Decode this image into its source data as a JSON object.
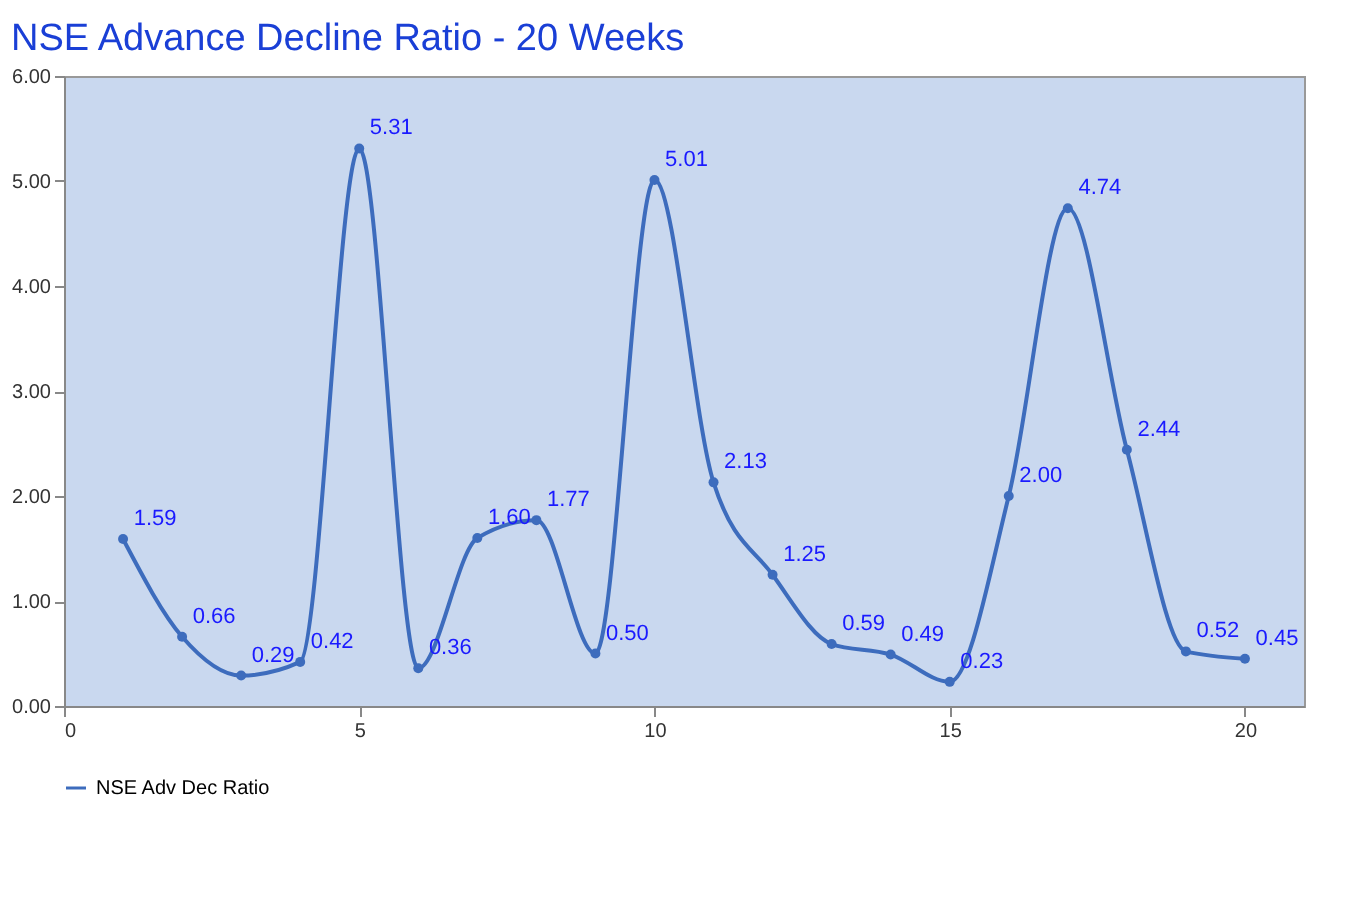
{
  "chart_data": {
    "type": "line",
    "title": "NSE Advance Decline Ratio - 20 Weeks",
    "x": [
      1,
      2,
      3,
      4,
      5,
      6,
      7,
      8,
      9,
      10,
      11,
      12,
      13,
      14,
      15,
      16,
      17,
      18,
      19,
      20
    ],
    "series": [
      {
        "name": "NSE Adv Dec Ratio",
        "color": "#3d6cbd",
        "values": [
          1.59,
          0.66,
          0.29,
          0.42,
          5.31,
          0.36,
          1.6,
          1.77,
          0.5,
          5.01,
          2.13,
          1.25,
          0.59,
          0.49,
          0.23,
          2.0,
          4.74,
          2.44,
          0.52,
          0.45
        ],
        "value_labels": [
          "1.59",
          "0.66",
          "0.29",
          "0.42",
          "5.31",
          "0.36",
          "1.60",
          "1.77",
          "0.50",
          "5.01",
          "2.13",
          "1.25",
          "0.59",
          "0.49",
          "0.23",
          "2.00",
          "4.74",
          "2.44",
          "0.52",
          "0.45"
        ]
      }
    ],
    "xlim": [
      0,
      21
    ],
    "xticks": [
      0,
      5,
      10,
      15,
      20
    ],
    "ylim": [
      0,
      6
    ],
    "yticks": [
      {
        "value": 0,
        "label": "0.00"
      },
      {
        "value": 1,
        "label": "1.00"
      },
      {
        "value": 2,
        "label": "2.00"
      },
      {
        "value": 3,
        "label": "3.00"
      },
      {
        "value": 4,
        "label": "4.00"
      },
      {
        "value": 5,
        "label": "5.00"
      },
      {
        "value": 6,
        "label": "6.00"
      }
    ],
    "marker": "circle",
    "line_style": "solid",
    "grid": false,
    "legend": "bottom"
  }
}
